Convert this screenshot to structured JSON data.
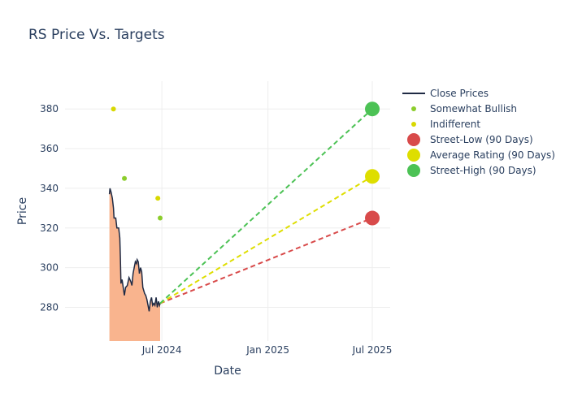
{
  "chart_data": {
    "type": "line",
    "title": "RS Price Vs. Targets",
    "xlabel": "Date",
    "ylabel": "Price",
    "x_range": [
      "2024-01-15",
      "2025-08-01"
    ],
    "y_range": [
      263,
      394
    ],
    "x_ticks": [
      {
        "date": "2024-07-01",
        "label": "Jul 2024"
      },
      {
        "date": "2025-01-01",
        "label": "Jan 2025"
      },
      {
        "date": "2025-07-01",
        "label": "Jul 2025"
      }
    ],
    "y_ticks": [
      280,
      300,
      320,
      340,
      360,
      380
    ],
    "grid": true,
    "legend_position": "top-right",
    "colors": {
      "close_line": "#1f2a44",
      "close_fill": "#f9b48e",
      "somewhat_bullish": "#8ccd2c",
      "indifferent": "#d8d800",
      "street_low": "#d84a4a",
      "average": "#dede00",
      "street_high": "#4cc255"
    },
    "series": [
      {
        "name": "Close Prices",
        "kind": "line",
        "points": [
          [
            "2024-04-01",
            337
          ],
          [
            "2024-04-02",
            340
          ],
          [
            "2024-04-04",
            338
          ],
          [
            "2024-04-06",
            335
          ],
          [
            "2024-04-08",
            330
          ],
          [
            "2024-04-09",
            325
          ],
          [
            "2024-04-12",
            325
          ],
          [
            "2024-04-14",
            320
          ],
          [
            "2024-04-17",
            320
          ],
          [
            "2024-04-19",
            315
          ],
          [
            "2024-04-20",
            305
          ],
          [
            "2024-04-21",
            292
          ],
          [
            "2024-04-23",
            294
          ],
          [
            "2024-04-25",
            290
          ],
          [
            "2024-04-27",
            286
          ],
          [
            "2024-04-29",
            290
          ],
          [
            "2024-05-02",
            291
          ],
          [
            "2024-05-05",
            295
          ],
          [
            "2024-05-08",
            293
          ],
          [
            "2024-05-10",
            291
          ],
          [
            "2024-05-12",
            297
          ],
          [
            "2024-05-14",
            300
          ],
          [
            "2024-05-16",
            303
          ],
          [
            "2024-05-18",
            302
          ],
          [
            "2024-05-19",
            304
          ],
          [
            "2024-05-21",
            303
          ],
          [
            "2024-05-23",
            297
          ],
          [
            "2024-05-25",
            300
          ],
          [
            "2024-05-27",
            298
          ],
          [
            "2024-05-29",
            290
          ],
          [
            "2024-06-01",
            287
          ],
          [
            "2024-06-03",
            286
          ],
          [
            "2024-06-05",
            284
          ],
          [
            "2024-06-07",
            281
          ],
          [
            "2024-06-09",
            278
          ],
          [
            "2024-06-11",
            283
          ],
          [
            "2024-06-13",
            285
          ],
          [
            "2024-06-15",
            281
          ],
          [
            "2024-06-17",
            282
          ],
          [
            "2024-06-19",
            281
          ],
          [
            "2024-06-21",
            285
          ],
          [
            "2024-06-23",
            280
          ],
          [
            "2024-06-25",
            283
          ],
          [
            "2024-06-27",
            281
          ],
          [
            "2024-06-28",
            282
          ]
        ]
      },
      {
        "name": "Somewhat Bullish",
        "kind": "markers",
        "points": [
          [
            "2024-04-27",
            345
          ],
          [
            "2024-06-28",
            325
          ]
        ]
      },
      {
        "name": "Indifferent",
        "kind": "markers",
        "points": [
          [
            "2024-04-08",
            380
          ],
          [
            "2024-06-24",
            335
          ]
        ]
      },
      {
        "name": "Street-Low (90 Days)",
        "kind": "target",
        "from": [
          "2024-06-28",
          282
        ],
        "to": [
          "2025-07-01",
          325
        ]
      },
      {
        "name": "Average Rating (90 Days)",
        "kind": "target",
        "from": [
          "2024-06-28",
          282
        ],
        "to": [
          "2025-07-01",
          346
        ]
      },
      {
        "name": "Street-High (90 Days)",
        "kind": "target",
        "from": [
          "2024-06-28",
          282
        ],
        "to": [
          "2025-07-01",
          380
        ]
      }
    ]
  }
}
